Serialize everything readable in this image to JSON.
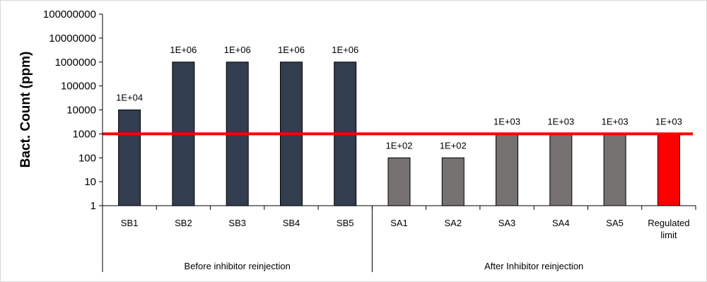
{
  "chart_data": {
    "type": "bar",
    "title": "",
    "ylabel": "Bact. Count (ppm)",
    "xlabel": "",
    "yscale": "log",
    "ylim": [
      1,
      100000000
    ],
    "y_ticks": [
      "1",
      "10",
      "100",
      "1000",
      "10000",
      "100000",
      "1000000",
      "10000000",
      "100000000"
    ],
    "grid": false,
    "legend": "none",
    "categories": [
      "SB1",
      "SB2",
      "SB3",
      "SB4",
      "SB5",
      "SA1",
      "SA2",
      "SA3",
      "SA4",
      "SA5",
      "Regulated limit"
    ],
    "category_lines": [
      [
        "SB1"
      ],
      [
        "SB2"
      ],
      [
        "SB3"
      ],
      [
        "SB4"
      ],
      [
        "SB5"
      ],
      [
        "SA1"
      ],
      [
        "SA2"
      ],
      [
        "SA3"
      ],
      [
        "SA4"
      ],
      [
        "SA5"
      ],
      [
        "Regulated",
        "limit"
      ]
    ],
    "values": [
      10000,
      1000000,
      1000000,
      1000000,
      1000000,
      100,
      100,
      1000,
      1000,
      1000,
      1000
    ],
    "data_labels": [
      "1E+04",
      "1E+06",
      "1E+06",
      "1E+06",
      "1E+06",
      "1E+02",
      "1E+02",
      "1E+03",
      "1E+03",
      "1E+03",
      "1E+03"
    ],
    "groups": [
      {
        "label": "Before inhibitor reinjection",
        "start": 0,
        "end": 4
      },
      {
        "label": "After Inhibitor reinjection",
        "start": 5,
        "end": 10
      }
    ],
    "bar_colors": [
      "#333d50",
      "#333d50",
      "#333d50",
      "#333d50",
      "#333d50",
      "#767171",
      "#767171",
      "#767171",
      "#767171",
      "#767171",
      "#ff0000"
    ],
    "reference_line": {
      "value": 1000,
      "color": "#ff0000"
    }
  }
}
